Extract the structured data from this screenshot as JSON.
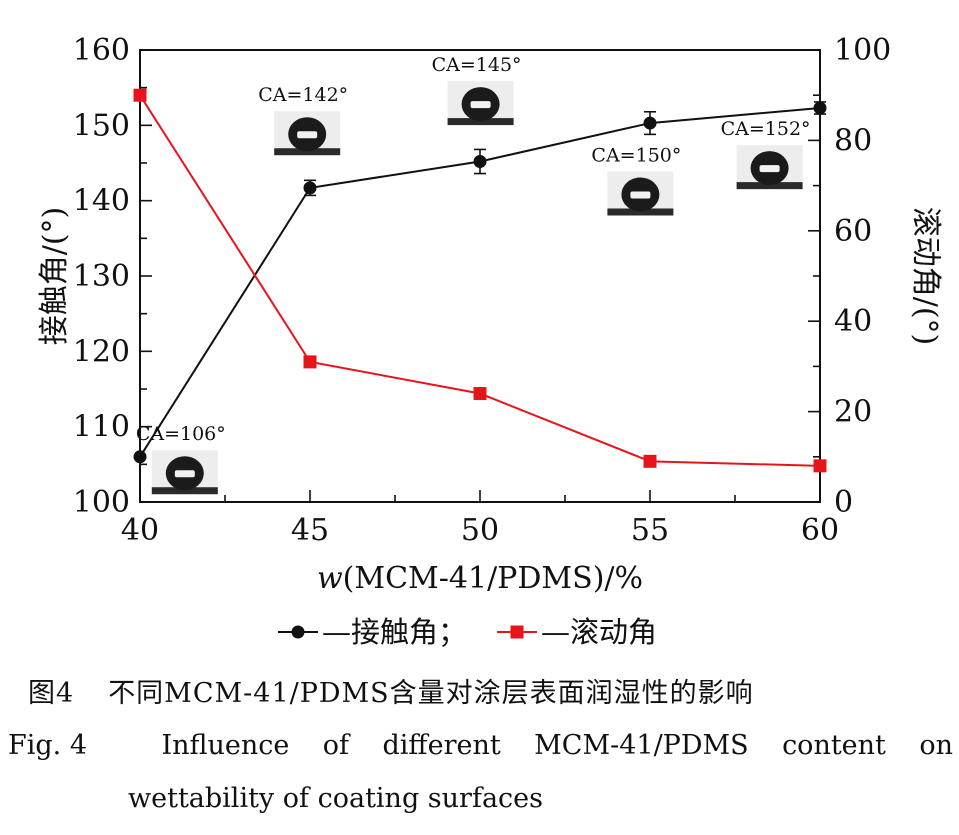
{
  "chart_data": {
    "type": "line",
    "xlabel": "w(MCM-41/PDMS)/%",
    "ylabel_left": "接触角/(°)",
    "ylabel_right": "滚动角/(°)",
    "x": [
      40,
      45,
      50,
      55,
      60
    ],
    "xlim": [
      40,
      60
    ],
    "xticks": [
      "40",
      "45",
      "50",
      "55",
      "60"
    ],
    "ylim_left": [
      100,
      160
    ],
    "yticks_left": [
      "100",
      "110",
      "120",
      "130",
      "140",
      "150",
      "160"
    ],
    "ylim_right": [
      0,
      100
    ],
    "yticks_right": [
      "0",
      "20",
      "40",
      "60",
      "80",
      "100"
    ],
    "grid": false,
    "legend_position": "bottom-center",
    "series": [
      {
        "name": "—接触角；",
        "axis": "left",
        "color": "#111111",
        "marker": "circle",
        "values": [
          106,
          141.7,
          145.2,
          150.3,
          152.3
        ],
        "errors": [
          0,
          1.0,
          1.6,
          1.5,
          0.8
        ]
      },
      {
        "name": "—滚动角",
        "axis": "right",
        "color": "#e8141c",
        "marker": "square",
        "values": [
          90,
          31,
          24,
          9,
          8
        ]
      }
    ],
    "annotations": [
      {
        "text": "CA=106°",
        "x": 41.2,
        "y": 108.2
      },
      {
        "text": "CA=142°",
        "x": 44.8,
        "y": 153.2
      },
      {
        "text": "CA=145°",
        "x": 49.9,
        "y": 157.2
      },
      {
        "text": "CA=150°",
        "x": 54.6,
        "y": 145.2
      },
      {
        "text": "CA=152°",
        "x": 58.4,
        "y": 148.7
      }
    ]
  },
  "caption": {
    "cn_label": "图4",
    "cn_text": "不同MCM-41/PDMS含量对涂层表面润湿性的影响",
    "en_label": "Fig. 4",
    "en_words": [
      "Influence",
      "of",
      "different",
      "MCM-41/PDMS",
      "content",
      "on"
    ],
    "en_line2": "wettability of coating surfaces"
  }
}
